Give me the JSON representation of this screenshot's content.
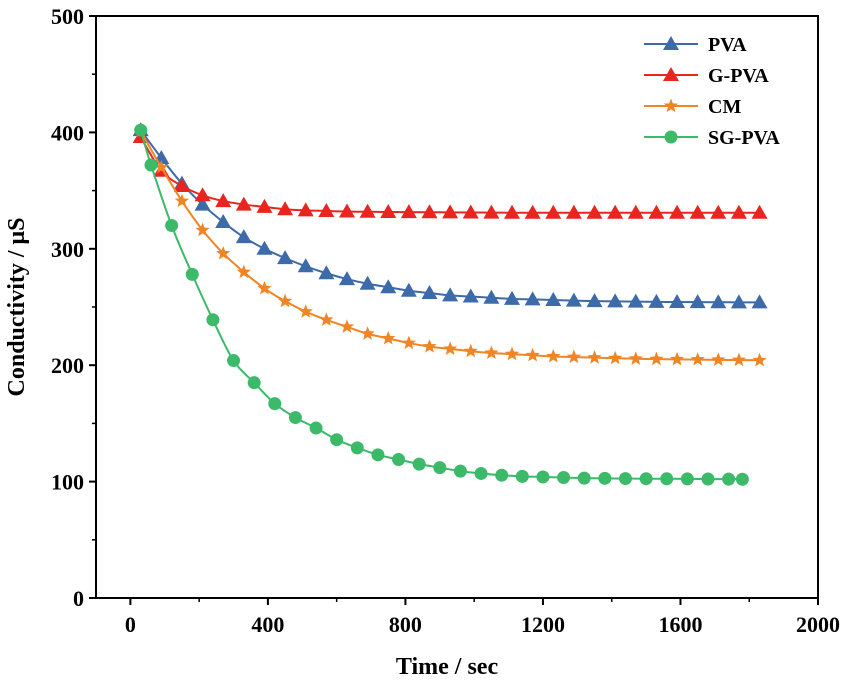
{
  "chart_data": {
    "type": "line",
    "xlabel": "Time / sec",
    "ylabel": "Conductivity / μS",
    "xlim": [
      -100,
      2000
    ],
    "ylim": [
      0,
      500
    ],
    "xticks": [
      0,
      400,
      800,
      1200,
      1600,
      2000
    ],
    "yticks": [
      0,
      100,
      200,
      300,
      400,
      500
    ],
    "grid": false,
    "legend_position": "top-right",
    "series": [
      {
        "name": "PVA",
        "color": "#3d6aa8",
        "marker": "triangle",
        "x": [
          30,
          90,
          150,
          210,
          270,
          330,
          390,
          450,
          510,
          570,
          630,
          690,
          750,
          810,
          870,
          930,
          990,
          1050,
          1110,
          1170,
          1230,
          1290,
          1350,
          1410,
          1470,
          1530,
          1590,
          1650,
          1710,
          1770,
          1830
        ],
        "y": [
          402,
          378,
          356,
          338,
          323,
          310,
          300,
          292,
          285,
          279,
          274,
          270,
          267,
          264,
          262,
          260,
          259,
          258,
          257,
          256.5,
          256,
          255.5,
          255,
          254.8,
          254.6,
          254.4,
          254.3,
          254.2,
          254.1,
          254,
          254
        ]
      },
      {
        "name": "G-PVA",
        "color": "#e8261f",
        "marker": "triangle",
        "x": [
          30,
          90,
          150,
          210,
          270,
          330,
          390,
          450,
          510,
          570,
          630,
          690,
          750,
          810,
          870,
          930,
          990,
          1050,
          1110,
          1170,
          1230,
          1290,
          1350,
          1410,
          1470,
          1530,
          1590,
          1650,
          1710,
          1770,
          1830
        ],
        "y": [
          396,
          367,
          354,
          346,
          341,
          338,
          336,
          334,
          333,
          332.5,
          332,
          331.8,
          331.6,
          331.5,
          331.4,
          331.3,
          331.2,
          331.1,
          331,
          331,
          331,
          331,
          331,
          331,
          331,
          331,
          331,
          331,
          331,
          331,
          331
        ]
      },
      {
        "name": "CM",
        "color": "#f08526",
        "marker": "star",
        "x": [
          30,
          90,
          150,
          210,
          270,
          330,
          390,
          450,
          510,
          570,
          630,
          690,
          750,
          810,
          870,
          930,
          990,
          1050,
          1110,
          1170,
          1230,
          1290,
          1350,
          1410,
          1470,
          1530,
          1590,
          1650,
          1710,
          1770,
          1830
        ],
        "y": [
          401,
          370,
          341,
          316,
          296,
          280,
          266,
          255,
          246,
          239,
          233,
          227,
          223,
          219,
          216,
          214,
          212,
          210.5,
          209.5,
          208.5,
          207.5,
          207,
          206.5,
          206,
          205.5,
          205.2,
          205,
          204.8,
          204.6,
          204.4,
          204.2
        ]
      },
      {
        "name": "SG-PVA",
        "color": "#3cba6a",
        "marker": "circle",
        "x": [
          30,
          60,
          120,
          180,
          240,
          300,
          360,
          420,
          480,
          540,
          600,
          660,
          720,
          780,
          840,
          900,
          960,
          1020,
          1080,
          1140,
          1200,
          1260,
          1320,
          1380,
          1440,
          1500,
          1560,
          1620,
          1680,
          1740,
          1780
        ],
        "y": [
          402,
          372,
          320,
          278,
          239,
          204,
          185,
          167,
          155,
          146,
          136,
          129,
          123,
          119,
          115,
          112,
          109,
          107,
          105.5,
          104.5,
          104,
          103.5,
          103,
          102.8,
          102.6,
          102.5,
          102.4,
          102.3,
          102.2,
          102.1,
          102
        ]
      }
    ]
  }
}
